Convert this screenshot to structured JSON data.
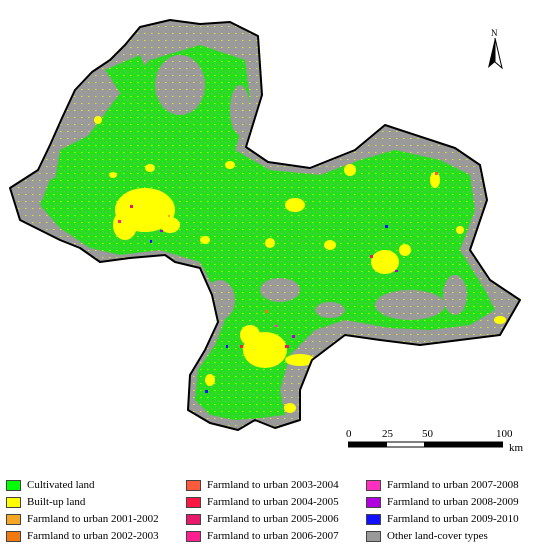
{
  "north_label": "N",
  "scale": {
    "ticks": [
      "0",
      "25",
      "50",
      "100"
    ],
    "unit": "km"
  },
  "legend": [
    {
      "label": "Cultivated land",
      "color": "#00ff00"
    },
    {
      "label": "Built-up land",
      "color": "#ffff00"
    },
    {
      "label": "Farmland to urban 2001-2002",
      "color": "#f5a623"
    },
    {
      "label": "Farmland to urban 2002-2003",
      "color": "#f07a10"
    },
    {
      "label": "Farmland to urban 2003-2004",
      "color": "#ff5a3c"
    },
    {
      "label": "Farmland to urban 2004-2005",
      "color": "#ff1744"
    },
    {
      "label": "Farmland to urban 2005-2006",
      "color": "#e8186a"
    },
    {
      "label": "Farmland to urban 2006-2007",
      "color": "#ff1f8f"
    },
    {
      "label": "Farmland to urban 2007-2008",
      "color": "#ff2fbf"
    },
    {
      "label": "Farmland to urban 2008-2009",
      "color": "#b000e0"
    },
    {
      "label": "Farmland to urban 2009-2010",
      "color": "#1010ff"
    },
    {
      "label": "Other land-cover types",
      "color": "#999999"
    }
  ],
  "colors": {
    "gray": "#9a9a9a",
    "green": "#22e11a",
    "yellow": "#ffff00"
  }
}
